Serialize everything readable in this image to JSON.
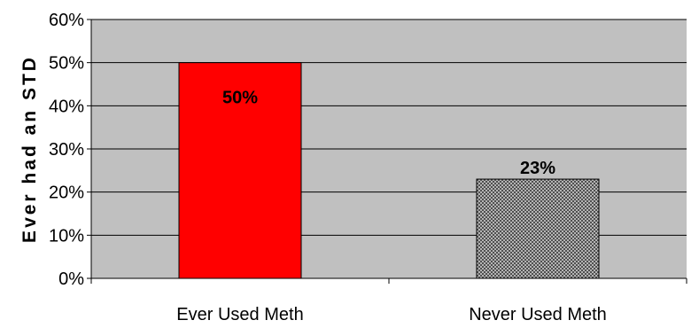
{
  "chart_data": {
    "type": "bar",
    "title": "",
    "xlabel": "",
    "ylabel": "Ever had an STD",
    "categories": [
      "Ever Used Meth",
      "Never Used Meth"
    ],
    "values": [
      50,
      23
    ],
    "value_labels": [
      "50%",
      "23%"
    ],
    "ylim": [
      0,
      60
    ],
    "yticks": [
      0,
      10,
      20,
      30,
      40,
      50,
      60
    ],
    "ytick_labels": [
      "0%",
      "10%",
      "20%",
      "30%",
      "40%",
      "50%",
      "60%"
    ],
    "grid": true,
    "legend": "none",
    "colors": {
      "plot_background": "#c0c0c0",
      "gridline": "#000000",
      "bars": [
        "#ff0000",
        "#808080"
      ]
    },
    "bar_fills": [
      "solid",
      "checkered-pattern"
    ]
  }
}
